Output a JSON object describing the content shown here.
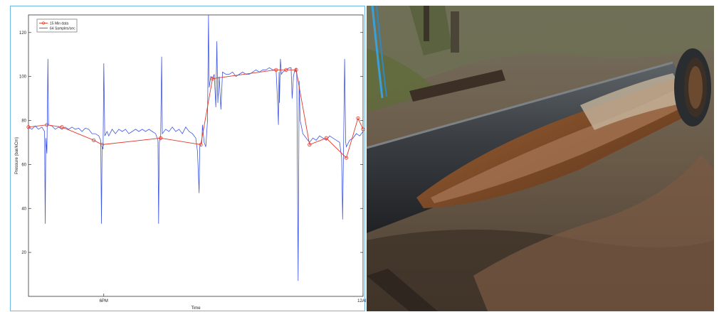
{
  "chart_data": {
    "type": "line",
    "xlabel": "Time",
    "ylabel": "Pressure (bar/kCm)",
    "xlim": [
      0,
      100
    ],
    "ylim": [
      0,
      128
    ],
    "yticks": [
      20,
      40,
      60,
      80,
      100,
      120
    ],
    "xticks": [
      {
        "x": 22.5,
        "label": "6PM"
      },
      {
        "x": 100,
        "label": "12AM"
      }
    ],
    "grid": false,
    "legend_position": "top-left",
    "series": [
      {
        "name": "15 Min data",
        "color": "#e03a2a",
        "marker": "circle",
        "points": [
          [
            0,
            77
          ],
          [
            5.5,
            78
          ],
          [
            10,
            77
          ],
          [
            19.5,
            71
          ],
          [
            22,
            69
          ],
          [
            39.5,
            72
          ],
          [
            51.5,
            69
          ],
          [
            55,
            99
          ],
          [
            74,
            103
          ],
          [
            77,
            103
          ],
          [
            80,
            103
          ],
          [
            84,
            69
          ],
          [
            89,
            72
          ],
          [
            95,
            63
          ],
          [
            98.5,
            81
          ],
          [
            100,
            76
          ]
        ]
      },
      {
        "name": "64 Samples/sec",
        "color": "#3f56e0",
        "points": [
          [
            0,
            77
          ],
          [
            1,
            76
          ],
          [
            2,
            77.5
          ],
          [
            3,
            76
          ],
          [
            4,
            77
          ],
          [
            4.8,
            75
          ],
          [
            5,
            33
          ],
          [
            5.2,
            72
          ],
          [
            5.5,
            65
          ],
          [
            5.8,
            108
          ],
          [
            6,
            78
          ],
          [
            7,
            77.5
          ],
          [
            8,
            76
          ],
          [
            9,
            77
          ],
          [
            10,
            76
          ],
          [
            11,
            77
          ],
          [
            12,
            76
          ],
          [
            13,
            77
          ],
          [
            14,
            76
          ],
          [
            15,
            76.5
          ],
          [
            16,
            75
          ],
          [
            17,
            76.5
          ],
          [
            18,
            76
          ],
          [
            19,
            74
          ],
          [
            20,
            74
          ],
          [
            21,
            73
          ],
          [
            21.6,
            71
          ],
          [
            21.8,
            33
          ],
          [
            22,
            68
          ],
          [
            22.3,
            67
          ],
          [
            22.5,
            106
          ],
          [
            22.8,
            73
          ],
          [
            23.5,
            75
          ],
          [
            24,
            73
          ],
          [
            25,
            76
          ],
          [
            26,
            74
          ],
          [
            27,
            76
          ],
          [
            28,
            75
          ],
          [
            29,
            76
          ],
          [
            30,
            74
          ],
          [
            31,
            75
          ],
          [
            32,
            76
          ],
          [
            33,
            75
          ],
          [
            34,
            76
          ],
          [
            35,
            75
          ],
          [
            36,
            76
          ],
          [
            37,
            75
          ],
          [
            38,
            74
          ],
          [
            38.7,
            71
          ],
          [
            38.9,
            33
          ],
          [
            39.1,
            70
          ],
          [
            39.5,
            73
          ],
          [
            39.8,
            109
          ],
          [
            40,
            74
          ],
          [
            41,
            76
          ],
          [
            42,
            75
          ],
          [
            43,
            77
          ],
          [
            44,
            75
          ],
          [
            45,
            76
          ],
          [
            46,
            74
          ],
          [
            47,
            77
          ],
          [
            48,
            75
          ],
          [
            49,
            74
          ],
          [
            50,
            72
          ],
          [
            50.5,
            66
          ],
          [
            51,
            47
          ],
          [
            51.2,
            68
          ],
          [
            51.8,
            70
          ],
          [
            52,
            78
          ],
          [
            52.5,
            70
          ],
          [
            53,
            68
          ],
          [
            53.5,
            80
          ],
          [
            53.8,
            128
          ],
          [
            54,
            95
          ],
          [
            54.5,
            100
          ],
          [
            55,
            99
          ],
          [
            55.5,
            101
          ],
          [
            56,
            86
          ],
          [
            56.3,
            116
          ],
          [
            56.6,
            88
          ],
          [
            57,
            100
          ],
          [
            57.5,
            85
          ],
          [
            58,
            102
          ],
          [
            59,
            101
          ],
          [
            60,
            101
          ],
          [
            61,
            102
          ],
          [
            62,
            100
          ],
          [
            63,
            101
          ],
          [
            64,
            102
          ],
          [
            65,
            101
          ],
          [
            66,
            101
          ],
          [
            67,
            102
          ],
          [
            68,
            103
          ],
          [
            69,
            102
          ],
          [
            70,
            103
          ],
          [
            71,
            103
          ],
          [
            72,
            104
          ],
          [
            73,
            103
          ],
          [
            74,
            103
          ],
          [
            74.5,
            87
          ],
          [
            74.7,
            78
          ],
          [
            74.9,
            102
          ],
          [
            75,
            88
          ],
          [
            75.3,
            108
          ],
          [
            75.6,
            101
          ],
          [
            76,
            102
          ],
          [
            77,
            103
          ],
          [
            78,
            104
          ],
          [
            78.5,
            104
          ],
          [
            78.8,
            90
          ],
          [
            79.2,
            100
          ],
          [
            79.6,
            103
          ],
          [
            79.8,
            102
          ],
          [
            80,
            104
          ],
          [
            80.2,
            100
          ],
          [
            80.6,
            7
          ],
          [
            80.9,
            98
          ],
          [
            81.2,
            80
          ],
          [
            81.5,
            78
          ],
          [
            82,
            74
          ],
          [
            83,
            72
          ],
          [
            84,
            70
          ],
          [
            85,
            72
          ],
          [
            86,
            71
          ],
          [
            87,
            73
          ],
          [
            88,
            72
          ],
          [
            89,
            71
          ],
          [
            90,
            73
          ],
          [
            91,
            72
          ],
          [
            92,
            71
          ],
          [
            93,
            70
          ],
          [
            93.6,
            63
          ],
          [
            93.9,
            35
          ],
          [
            94.2,
            70
          ],
          [
            94.5,
            108
          ],
          [
            94.8,
            70
          ],
          [
            95,
            68
          ],
          [
            96,
            71
          ],
          [
            97,
            72
          ],
          [
            98,
            74
          ],
          [
            99,
            73
          ],
          [
            100,
            75
          ]
        ]
      }
    ]
  },
  "photo": {
    "subject": "cracked-corroded-pipe-photo",
    "colors": {
      "soil": "#5a4a3a",
      "pipe": "#3a3d40",
      "rust": "#8a5530",
      "grass": "#5f6b3a"
    }
  }
}
